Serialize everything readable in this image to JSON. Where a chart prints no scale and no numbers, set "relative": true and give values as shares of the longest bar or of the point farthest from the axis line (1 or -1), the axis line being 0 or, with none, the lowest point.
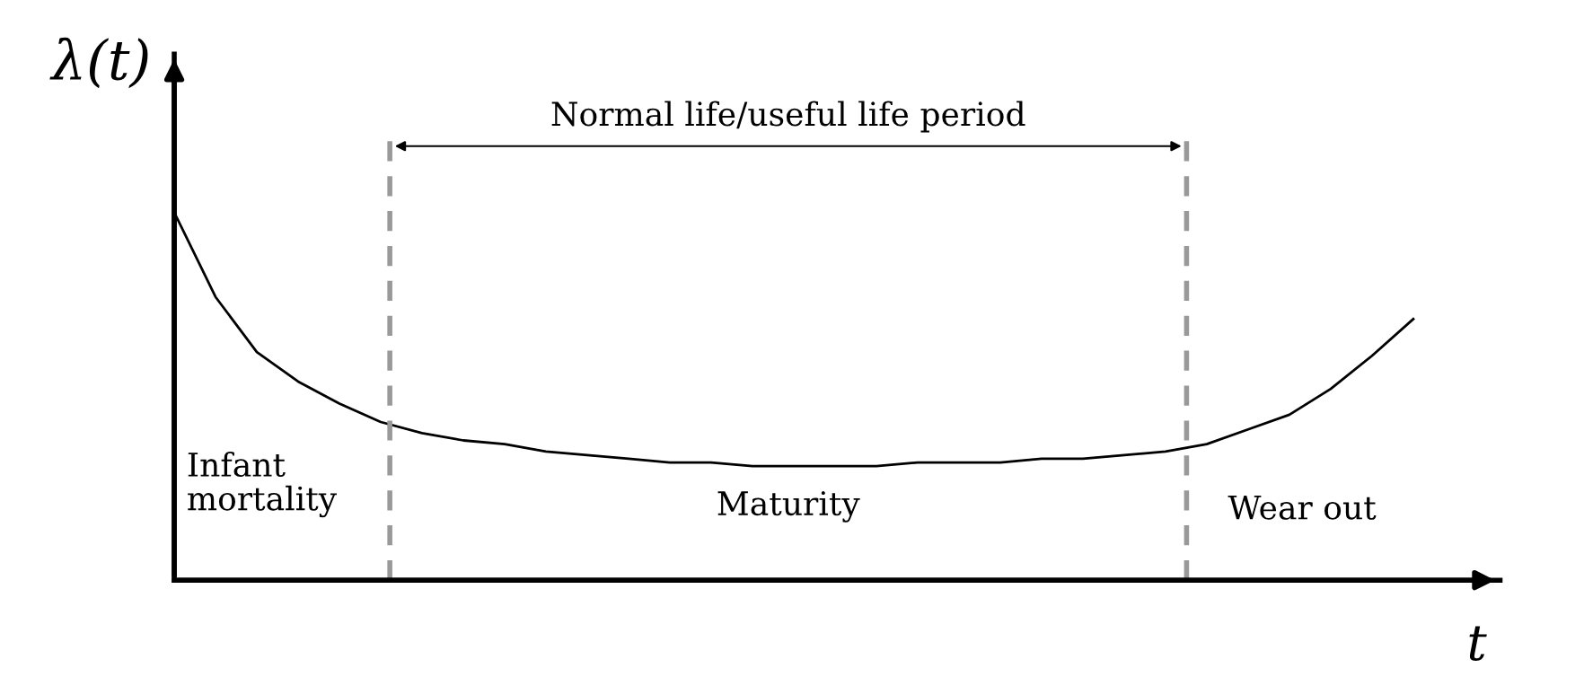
{
  "chart_data": {
    "type": "line",
    "relative": true,
    "xlabel": "t",
    "ylabel": "λ(t)",
    "categories": [
      null,
      null,
      null,
      null,
      null,
      null,
      null,
      null,
      null,
      null,
      null,
      null,
      null,
      null,
      null,
      null,
      null,
      null,
      null,
      null,
      null,
      null,
      null,
      null,
      null,
      null,
      null,
      null,
      null,
      null,
      null
    ],
    "series": [
      {
        "color": "#000000",
        "values": [
          1,
          0.77,
          0.62,
          0.54,
          0.48,
          0.43,
          0.4,
          0.38,
          0.37,
          0.35,
          0.34,
          0.33,
          0.32,
          0.32,
          0.31,
          0.31,
          0.31,
          0.31,
          0.32,
          0.32,
          0.32,
          0.33,
          0.33,
          0.34,
          0.35,
          0.37,
          0.41,
          0.45,
          0.52,
          0.61,
          0.71
        ]
      }
    ],
    "annotations": [
      "Normal life/useful life period",
      "Infant\nmortality",
      "Maturity",
      "Wear out"
    ],
    "grid": false,
    "marker": "none",
    "line_style": "solid"
  }
}
